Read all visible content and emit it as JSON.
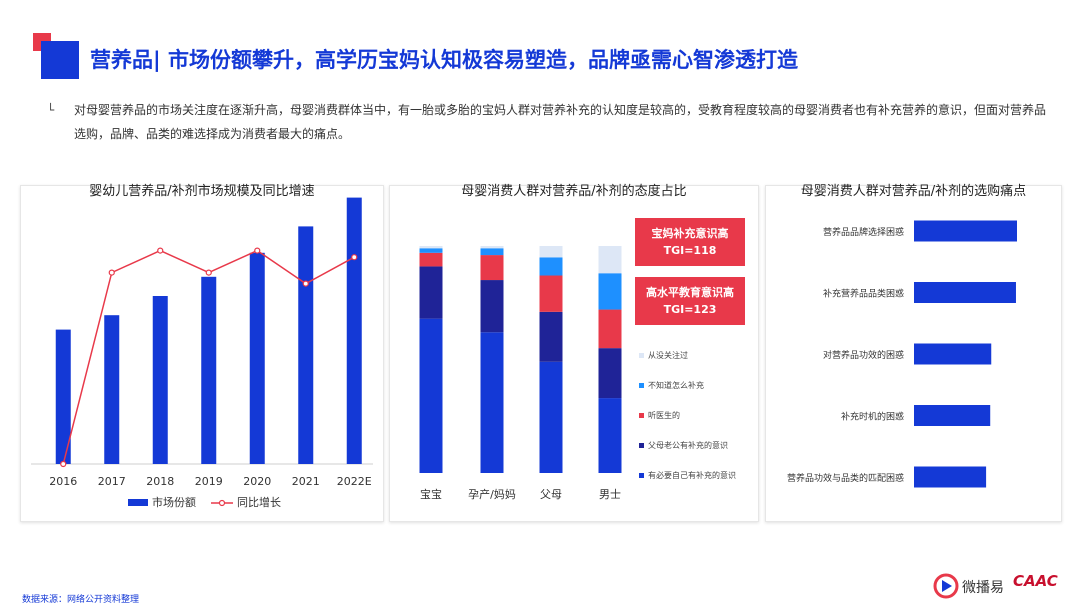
{
  "header": {
    "title": "营养品| 市场份额攀升，高学历宝妈认知极容易塑造，品牌亟需心智渗透打造",
    "bullet_mark": "└",
    "intro": "对母婴营养品的市场关注度在逐渐升高，母婴消费群体当中，有一胎或多胎的宝妈人群对营养补充的认知度是较高的，受教育程度较高的母婴消费者也有补充营养的意识，但面对营养品选购，品牌、品类的难选择成为消费者最大的痛点。"
  },
  "footer": {
    "source": "数据来源：网络公开资料整理",
    "logo_text": "微播易",
    "logo_caac": "CAAC"
  },
  "colors": {
    "primary_blue": "#1439d6",
    "dark_navy": "#1f2397",
    "red": "#e8394a",
    "light_blue": "#1e90ff",
    "pale_blue": "#dde7f6",
    "accent_red": "#e8394a"
  },
  "chart_data": [
    {
      "type": "bar",
      "title": "婴幼儿营养品/补剂市场规模及同比增速",
      "categories": [
        "2016",
        "2017",
        "2018",
        "2019",
        "2020",
        "2021",
        "2022E"
      ],
      "series": [
        {
          "name": "市场份额",
          "type": "bar",
          "values": [
            56,
            62,
            70,
            78,
            88,
            99,
            111
          ]
        },
        {
          "name": "同比增长",
          "type": "line",
          "values": [
            0,
            87,
            97,
            87,
            97,
            82,
            94
          ]
        }
      ],
      "legend": "bottom"
    },
    {
      "type": "bar",
      "stacked": true,
      "title": "母婴消费人群对营养品/补剂的态度占比",
      "categories": [
        "宝宝",
        "孕产/妈妈",
        "父母",
        "男士"
      ],
      "series": [
        {
          "name": "有必要自己有补充的意识",
          "color": "#1439d6",
          "values": [
            68,
            62,
            49,
            33
          ]
        },
        {
          "name": "父母老公有补充的意识",
          "color": "#1f2397",
          "values": [
            23,
            23,
            22,
            22
          ]
        },
        {
          "name": "听医生的",
          "color": "#e8394a",
          "values": [
            6,
            11,
            16,
            17
          ]
        },
        {
          "name": "不知道怎么补充",
          "color": "#1e90ff",
          "values": [
            2,
            3,
            8,
            16
          ]
        },
        {
          "name": "从没关注过",
          "color": "#dde7f6",
          "values": [
            1,
            1,
            5,
            12
          ]
        }
      ],
      "ylim": [
        0,
        100
      ],
      "annotations": [
        {
          "line1": "宝妈补充意识高",
          "line2": "TGI=118"
        },
        {
          "line1": "高水平教育意识高",
          "line2": "TGI=123"
        }
      ],
      "legend": "right"
    },
    {
      "type": "bar",
      "orientation": "horizontal",
      "title": "母婴消费人群对营养品/补剂的选购痛点",
      "categories": [
        "营养品品牌选择困惑",
        "补充营养品品类困惑",
        "对营养品功效的困惑",
        "补充时机的困惑",
        "营养品功效与品类的匹配困惑"
      ],
      "values": [
        100,
        99,
        75,
        74,
        70
      ]
    }
  ]
}
